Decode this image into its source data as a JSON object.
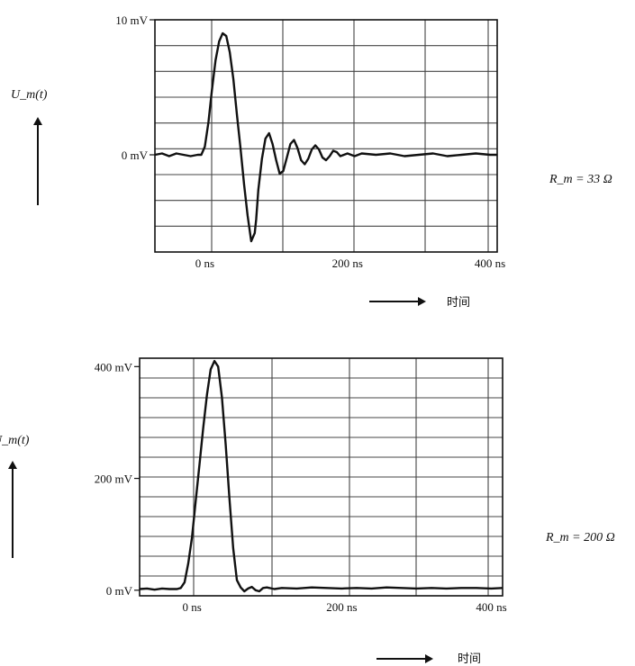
{
  "chart_data": [
    {
      "type": "line",
      "ylabel": "U_m(t)",
      "xlabel": "时间",
      "annotation": "R_m = 33 Ω",
      "y_ticks": [
        "10 mV",
        "0 mV"
      ],
      "y_tick_values": [
        10,
        0
      ],
      "x_ticks": [
        "0 ns",
        "200 ns",
        "400 ns"
      ],
      "x_tick_values": [
        0,
        200,
        400
      ],
      "xlim": [
        -70,
        410
      ],
      "ylim": [
        -7.2,
        10
      ],
      "grid": true,
      "series": [
        {
          "x": [
            -70,
            -60,
            -50,
            -40,
            -30,
            -20,
            -10,
            -5,
            0,
            5,
            10,
            15,
            20,
            25,
            30,
            35,
            40,
            45,
            50,
            55,
            60,
            65,
            70,
            72,
            75,
            80,
            85,
            90,
            95,
            100,
            105,
            110,
            115,
            120,
            125,
            130,
            135,
            140,
            145,
            150,
            155,
            160,
            165,
            170,
            175,
            180,
            185,
            190,
            195,
            200,
            210,
            220,
            240,
            260,
            280,
            300,
            320,
            340,
            360,
            380,
            400,
            410
          ],
          "y": [
            0.0,
            0.1,
            -0.1,
            0.1,
            0.0,
            -0.1,
            0.0,
            0.0,
            0.6,
            2.4,
            4.8,
            7.0,
            8.4,
            9.0,
            8.8,
            7.6,
            5.6,
            3.0,
            0.5,
            -2.2,
            -4.5,
            -6.4,
            -5.8,
            -4.8,
            -2.6,
            -0.3,
            1.2,
            1.6,
            0.8,
            -0.4,
            -1.4,
            -1.2,
            -0.2,
            0.8,
            1.1,
            0.5,
            -0.4,
            -0.7,
            -0.3,
            0.4,
            0.7,
            0.4,
            -0.2,
            -0.4,
            -0.1,
            0.3,
            0.2,
            -0.1,
            0.0,
            0.1,
            -0.1,
            0.1,
            0.0,
            0.1,
            -0.1,
            0.0,
            0.1,
            -0.1,
            0.0,
            0.1,
            0.0,
            0.0
          ]
        }
      ]
    },
    {
      "type": "line",
      "ylabel": "U_m(t)",
      "xlabel": "时间",
      "annotation": "R_m = 200 Ω",
      "y_ticks": [
        "400 mV",
        "200 mV",
        "0 mV"
      ],
      "y_tick_values": [
        400,
        200,
        0
      ],
      "x_ticks": [
        "0 ns",
        "200 ns",
        "400 ns"
      ],
      "x_tick_values": [
        0,
        200,
        400
      ],
      "xlim": [
        -70,
        415
      ],
      "ylim": [
        -10,
        415
      ],
      "grid": true,
      "series": [
        {
          "x": [
            -70,
            -60,
            -50,
            -40,
            -30,
            -20,
            -15,
            -10,
            -5,
            0,
            5,
            10,
            15,
            20,
            25,
            30,
            35,
            40,
            45,
            50,
            55,
            60,
            65,
            70,
            75,
            80,
            85,
            90,
            95,
            100,
            110,
            120,
            140,
            160,
            180,
            200,
            220,
            240,
            260,
            280,
            300,
            320,
            340,
            360,
            380,
            400,
            415
          ],
          "y": [
            2,
            3,
            1,
            3,
            2,
            2,
            4,
            14,
            48,
            95,
            160,
            225,
            290,
            350,
            395,
            410,
            400,
            345,
            260,
            165,
            75,
            18,
            5,
            -2,
            3,
            6,
            0,
            -2,
            4,
            5,
            2,
            4,
            3,
            5,
            4,
            3,
            4,
            3,
            5,
            4,
            3,
            4,
            3,
            4,
            4,
            3,
            4
          ]
        }
      ]
    }
  ]
}
